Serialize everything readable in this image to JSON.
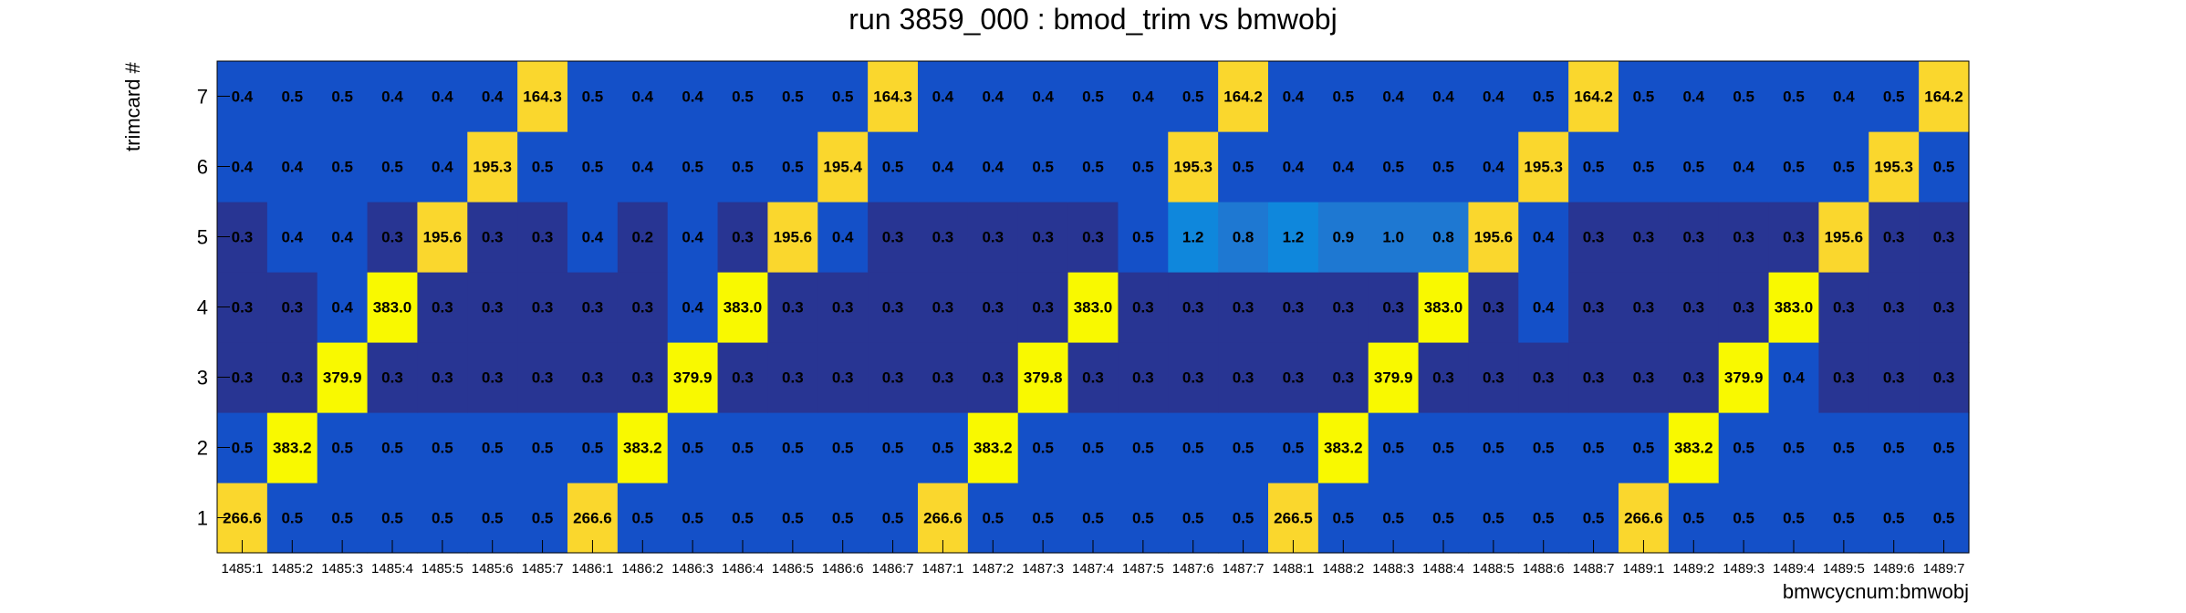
{
  "chart_data": {
    "type": "heatmap",
    "title": "run 3859_000 : bmod_trim vs bmwobj",
    "xlabel": "bmwcycnum:bmwobj",
    "ylabel": "trimcard #",
    "x_categories": [
      "1485:1",
      "1485:2",
      "1485:3",
      "1485:4",
      "1485:5",
      "1485:6",
      "1485:7",
      "1486:1",
      "1486:2",
      "1486:3",
      "1486:4",
      "1486:5",
      "1486:6",
      "1486:7",
      "1487:1",
      "1487:2",
      "1487:3",
      "1487:4",
      "1487:5",
      "1487:6",
      "1487:7",
      "1488:1",
      "1488:2",
      "1488:3",
      "1488:4",
      "1488:5",
      "1488:6",
      "1488:7",
      "1489:1",
      "1489:2",
      "1489:3",
      "1489:4",
      "1489:5",
      "1489:6",
      "1489:7"
    ],
    "y_categories": [
      "1",
      "2",
      "3",
      "4",
      "5",
      "6",
      "7"
    ],
    "values": [
      [
        "266.6",
        "0.5",
        "0.5",
        "0.5",
        "0.5",
        "0.5",
        "0.5",
        "266.6",
        "0.5",
        "0.5",
        "0.5",
        "0.5",
        "0.5",
        "0.5",
        "266.6",
        "0.5",
        "0.5",
        "0.5",
        "0.5",
        "0.5",
        "0.5",
        "266.5",
        "0.5",
        "0.5",
        "0.5",
        "0.5",
        "0.5",
        "0.5",
        "266.6",
        "0.5",
        "0.5",
        "0.5",
        "0.5",
        "0.5",
        "0.5"
      ],
      [
        "0.5",
        "383.2",
        "0.5",
        "0.5",
        "0.5",
        "0.5",
        "0.5",
        "0.5",
        "383.2",
        "0.5",
        "0.5",
        "0.5",
        "0.5",
        "0.5",
        "0.5",
        "383.2",
        "0.5",
        "0.5",
        "0.5",
        "0.5",
        "0.5",
        "0.5",
        "383.2",
        "0.5",
        "0.5",
        "0.5",
        "0.5",
        "0.5",
        "0.5",
        "383.2",
        "0.5",
        "0.5",
        "0.5",
        "0.5",
        "0.5"
      ],
      [
        "0.3",
        "0.3",
        "379.9",
        "0.3",
        "0.3",
        "0.3",
        "0.3",
        "0.3",
        "0.3",
        "379.9",
        "0.3",
        "0.3",
        "0.3",
        "0.3",
        "0.3",
        "0.3",
        "379.8",
        "0.3",
        "0.3",
        "0.3",
        "0.3",
        "0.3",
        "0.3",
        "379.9",
        "0.3",
        "0.3",
        "0.3",
        "0.3",
        "0.3",
        "0.3",
        "379.9",
        "0.4",
        "0.3",
        "0.3",
        "0.3"
      ],
      [
        "0.3",
        "0.3",
        "0.4",
        "383.0",
        "0.3",
        "0.3",
        "0.3",
        "0.3",
        "0.3",
        "0.4",
        "383.0",
        "0.3",
        "0.3",
        "0.3",
        "0.3",
        "0.3",
        "0.3",
        "383.0",
        "0.3",
        "0.3",
        "0.3",
        "0.3",
        "0.3",
        "0.3",
        "383.0",
        "0.3",
        "0.4",
        "0.3",
        "0.3",
        "0.3",
        "0.3",
        "383.0",
        "0.3",
        "0.3",
        "0.3"
      ],
      [
        "0.3",
        "0.4",
        "0.4",
        "0.3",
        "195.6",
        "0.3",
        "0.3",
        "0.4",
        "0.2",
        "0.4",
        "0.3",
        "195.6",
        "0.4",
        "0.3",
        "0.3",
        "0.3",
        "0.3",
        "0.3",
        "0.5",
        "1.2",
        "0.8",
        "1.2",
        "0.9",
        "1.0",
        "0.8",
        "195.6",
        "0.4",
        "0.3",
        "0.3",
        "0.3",
        "0.3",
        "0.3",
        "195.6",
        "0.3",
        "0.3"
      ],
      [
        "0.4",
        "0.4",
        "0.5",
        "0.5",
        "0.4",
        "195.3",
        "0.5",
        "0.5",
        "0.4",
        "0.5",
        "0.5",
        "0.5",
        "195.4",
        "0.5",
        "0.4",
        "0.4",
        "0.5",
        "0.5",
        "0.5",
        "195.3",
        "0.5",
        "0.4",
        "0.4",
        "0.5",
        "0.5",
        "0.4",
        "195.3",
        "0.5",
        "0.5",
        "0.5",
        "0.4",
        "0.5",
        "0.5",
        "195.3",
        "0.5"
      ],
      [
        "0.4",
        "0.5",
        "0.5",
        "0.4",
        "0.4",
        "0.4",
        "164.3",
        "0.5",
        "0.4",
        "0.4",
        "0.5",
        "0.5",
        "0.5",
        "164.3",
        "0.4",
        "0.4",
        "0.4",
        "0.5",
        "0.4",
        "0.5",
        "164.2",
        "0.4",
        "0.5",
        "0.4",
        "0.4",
        "0.4",
        "0.5",
        "164.2",
        "0.5",
        "0.4",
        "0.5",
        "0.5",
        "0.4",
        "0.5",
        "164.2"
      ]
    ],
    "colors": {
      "yellow": "#f9f900",
      "gold": "#fad72d",
      "dark_blue": "#283593",
      "blue": "#1450c8",
      "mid_blue": "#1e78d2",
      "light_blue": "#0f87dc"
    }
  }
}
